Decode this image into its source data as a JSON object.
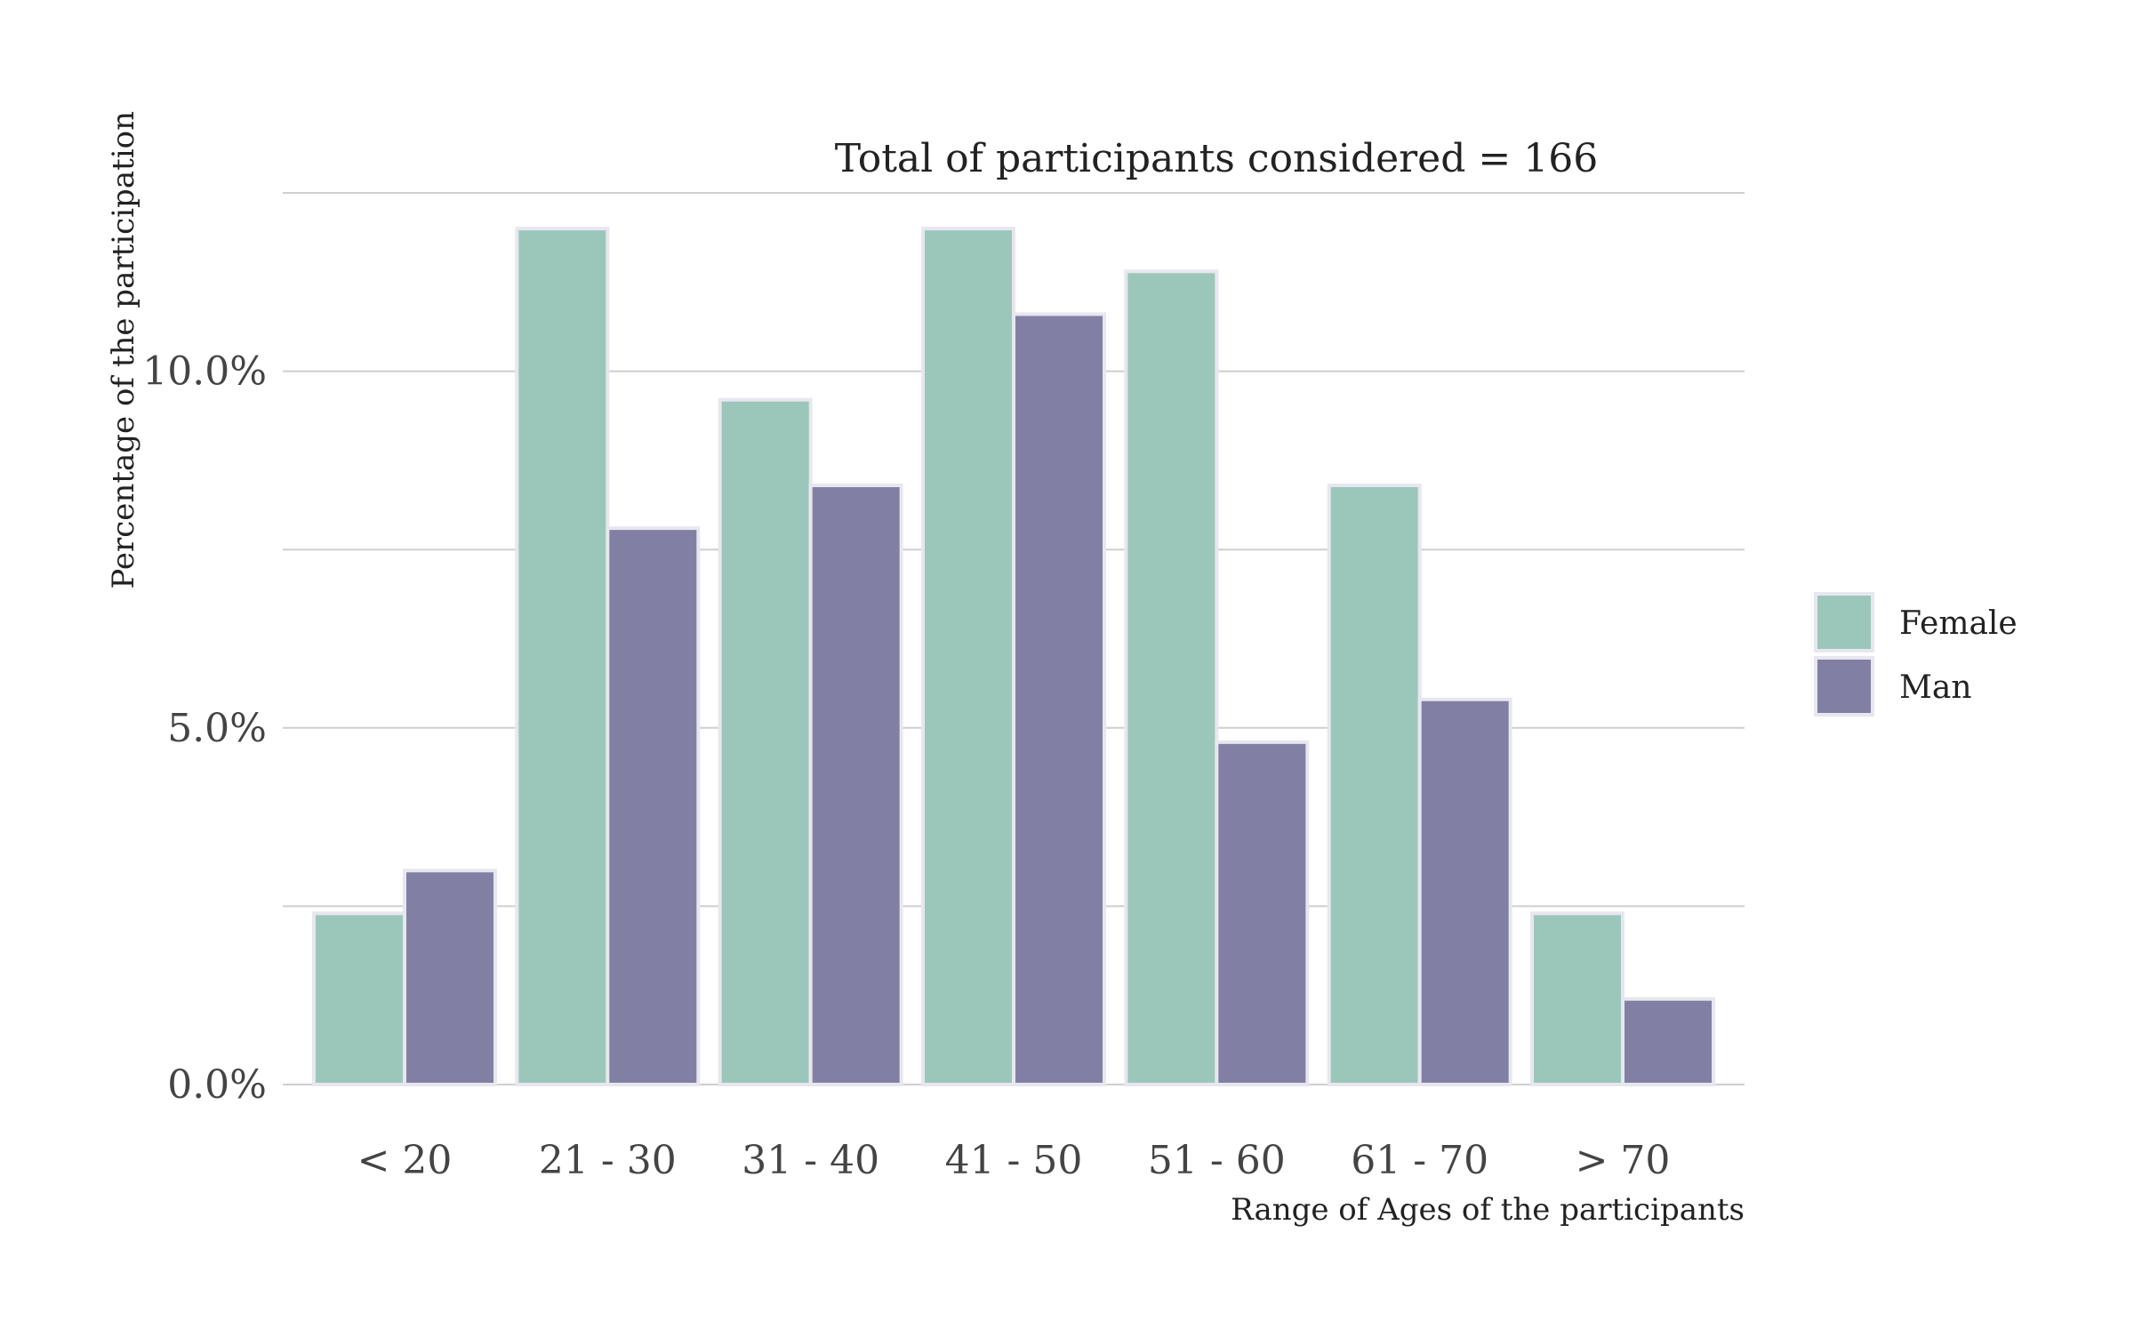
{
  "chart_data": {
    "type": "bar",
    "title": "Total of participants considered = 166",
    "xlabel": "Range of Ages of the participants",
    "ylabel": "Percentage of the participation",
    "categories": [
      "< 20",
      "21 - 30",
      "31 - 40",
      "41 - 50",
      "51 - 60",
      "61 - 70",
      "> 70"
    ],
    "series": [
      {
        "name": "Female",
        "color": "#9bc7bb",
        "values": [
          2.4,
          12.0,
          9.6,
          12.0,
          11.4,
          8.4,
          2.4
        ]
      },
      {
        "name": "Man",
        "color": "#8180a4",
        "values": [
          3.0,
          7.8,
          8.4,
          10.8,
          4.8,
          5.4,
          1.2
        ]
      }
    ],
    "ylim": [
      0,
      12.5
    ],
    "yticks": [
      {
        "value": 0,
        "label": "0.0%"
      },
      {
        "value": 5,
        "label": "5.0%"
      },
      {
        "value": 10,
        "label": "10.0%"
      }
    ],
    "gridlines": [
      0,
      2.5,
      5,
      7.5,
      10,
      12.5
    ],
    "grid": true,
    "legend_position": "right"
  }
}
